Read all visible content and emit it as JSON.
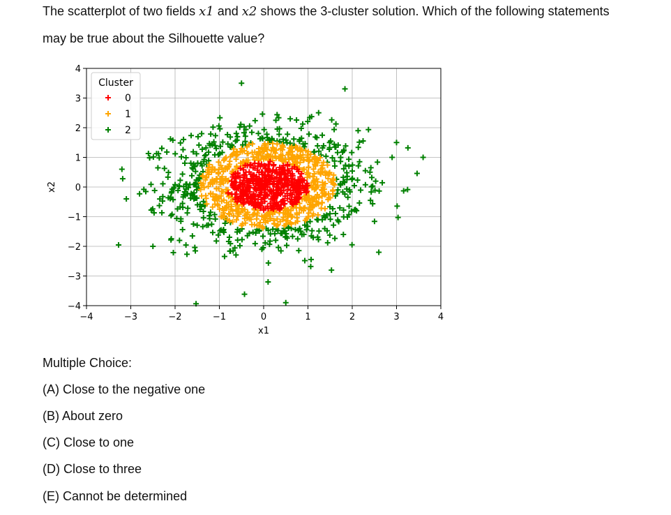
{
  "question": {
    "line1_pre": "The scatterplot of two fields ",
    "var1": "x1",
    "line1_mid": " and ",
    "var2": "x2",
    "line1_post": " shows the 3-cluster solution.  Which of the following statements",
    "line2": "may be true about the Silhouette value?"
  },
  "choices": {
    "heading": "Multiple Choice:",
    "items": [
      "(A) Close to the negative one",
      "(B) About zero",
      "(C) Close to one",
      "(D) Close to three",
      "(E) Cannot be determined"
    ]
  },
  "chart_data": {
    "type": "scatter",
    "xlabel": "x1",
    "ylabel": "x2",
    "xlim": [
      -4,
      4
    ],
    "ylim": [
      -4,
      4
    ],
    "xticks": [
      "−4",
      "−3",
      "−2",
      "−1",
      "0",
      "1",
      "2",
      "3",
      "4"
    ],
    "yticks": [
      "4",
      "3",
      "2",
      "1",
      "0",
      "−1",
      "−2",
      "−3",
      "−4"
    ],
    "grid": true,
    "marker": "plus",
    "legend": {
      "title": "Cluster",
      "position": "upper-left"
    },
    "series": [
      {
        "name": "0",
        "color": "#ff0000",
        "note_region": "inner core, radius approx 0.0-0.9",
        "points": [
          [
            0,
            0
          ],
          [
            -0.3,
            0.2
          ],
          [
            0.3,
            -0.2
          ],
          [
            0.5,
            0.3
          ],
          [
            -0.5,
            -0.3
          ],
          [
            0.1,
            0.6
          ],
          [
            -0.1,
            -0.6
          ],
          [
            0.7,
            0
          ],
          [
            -0.7,
            0.05
          ],
          [
            0.2,
            -0.4
          ],
          [
            -0.4,
            0.5
          ],
          [
            0.6,
            -0.5
          ],
          [
            -0.6,
            -0.5
          ],
          [
            0.4,
            0.6
          ],
          [
            -0.2,
            0.8
          ],
          [
            0.8,
            0.2
          ],
          [
            -0.8,
            -0.2
          ],
          [
            0.3,
            0.1
          ],
          [
            -0.1,
            0.3
          ],
          [
            0.05,
            -0.3
          ]
        ]
      },
      {
        "name": "1",
        "color": "#ffa500",
        "note_region": "ring, radius approx 0.9-1.6",
        "points": [
          [
            1.2,
            0
          ],
          [
            -1.2,
            0.1
          ],
          [
            0,
            1.2
          ],
          [
            0,
            -1.1
          ],
          [
            0.9,
            0.9
          ],
          [
            -0.9,
            0.9
          ],
          [
            0.9,
            -0.8
          ],
          [
            -0.9,
            -0.8
          ],
          [
            1.4,
            0.4
          ],
          [
            -1.4,
            -0.3
          ],
          [
            0.4,
            1.3
          ],
          [
            -0.5,
            -1.3
          ],
          [
            1.1,
            -0.5
          ],
          [
            -1.1,
            0.6
          ],
          [
            0.6,
            -1.2
          ],
          [
            -0.6,
            1.2
          ]
        ]
      },
      {
        "name": "2",
        "color": "#008000",
        "note_region": "outer shell, radius approx 1.6-3.8",
        "points": [
          [
            -3.2,
            0.6
          ],
          [
            -3.1,
            -0.4
          ],
          [
            -2.5,
            -2.0
          ],
          [
            -0.5,
            3.5
          ],
          [
            0.6,
            2.3
          ],
          [
            2.9,
            1.0
          ],
          [
            3.0,
            1.5
          ],
          [
            3.6,
            1.0
          ],
          [
            0.1,
            -3.2
          ],
          [
            0.5,
            -3.9
          ],
          [
            -1.4,
            1.8
          ],
          [
            2.6,
            -2.2
          ],
          [
            -2.3,
            1.3
          ],
          [
            1.8,
            -1.6
          ],
          [
            -1.9,
            -1.8
          ],
          [
            2.4,
            0.5
          ]
        ]
      }
    ]
  }
}
